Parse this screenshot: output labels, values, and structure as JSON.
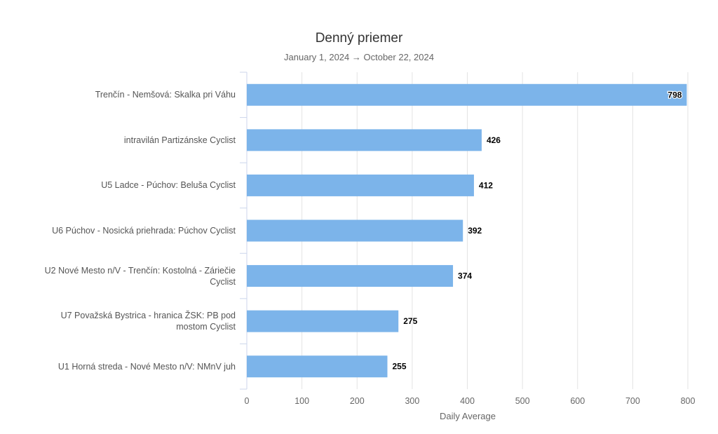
{
  "chart_data": {
    "type": "bar",
    "orientation": "horizontal",
    "title": "Denný priemer",
    "subtitle": "January 1, 2024 → October 22, 2024",
    "xlabel": "Daily Average",
    "ylabel": "",
    "categories": [
      "Trenčín - Nemšová: Skalka pri Váhu",
      "intravilán Partizánske Cyclist",
      "U5 Ladce - Púchov: Beluša Cyclist",
      "U6 Púchov - Nosická priehrada: Púchov Cyclist",
      "U2 Nové Mesto n/V - Trenčín: Kostolná - Záriečie Cyclist",
      "U7 Považská Bystrica - hranica ŽSK: PB pod mostom Cyclist",
      "U1 Horná streda - Nové Mesto n/V: NMnV juh"
    ],
    "values": [
      798,
      426,
      412,
      392,
      374,
      275,
      255
    ],
    "xlim": [
      0,
      800
    ],
    "xticks": [
      0,
      100,
      200,
      300,
      400,
      500,
      600,
      700,
      800
    ],
    "grid": true,
    "bar_color": "#7cb4ea"
  }
}
